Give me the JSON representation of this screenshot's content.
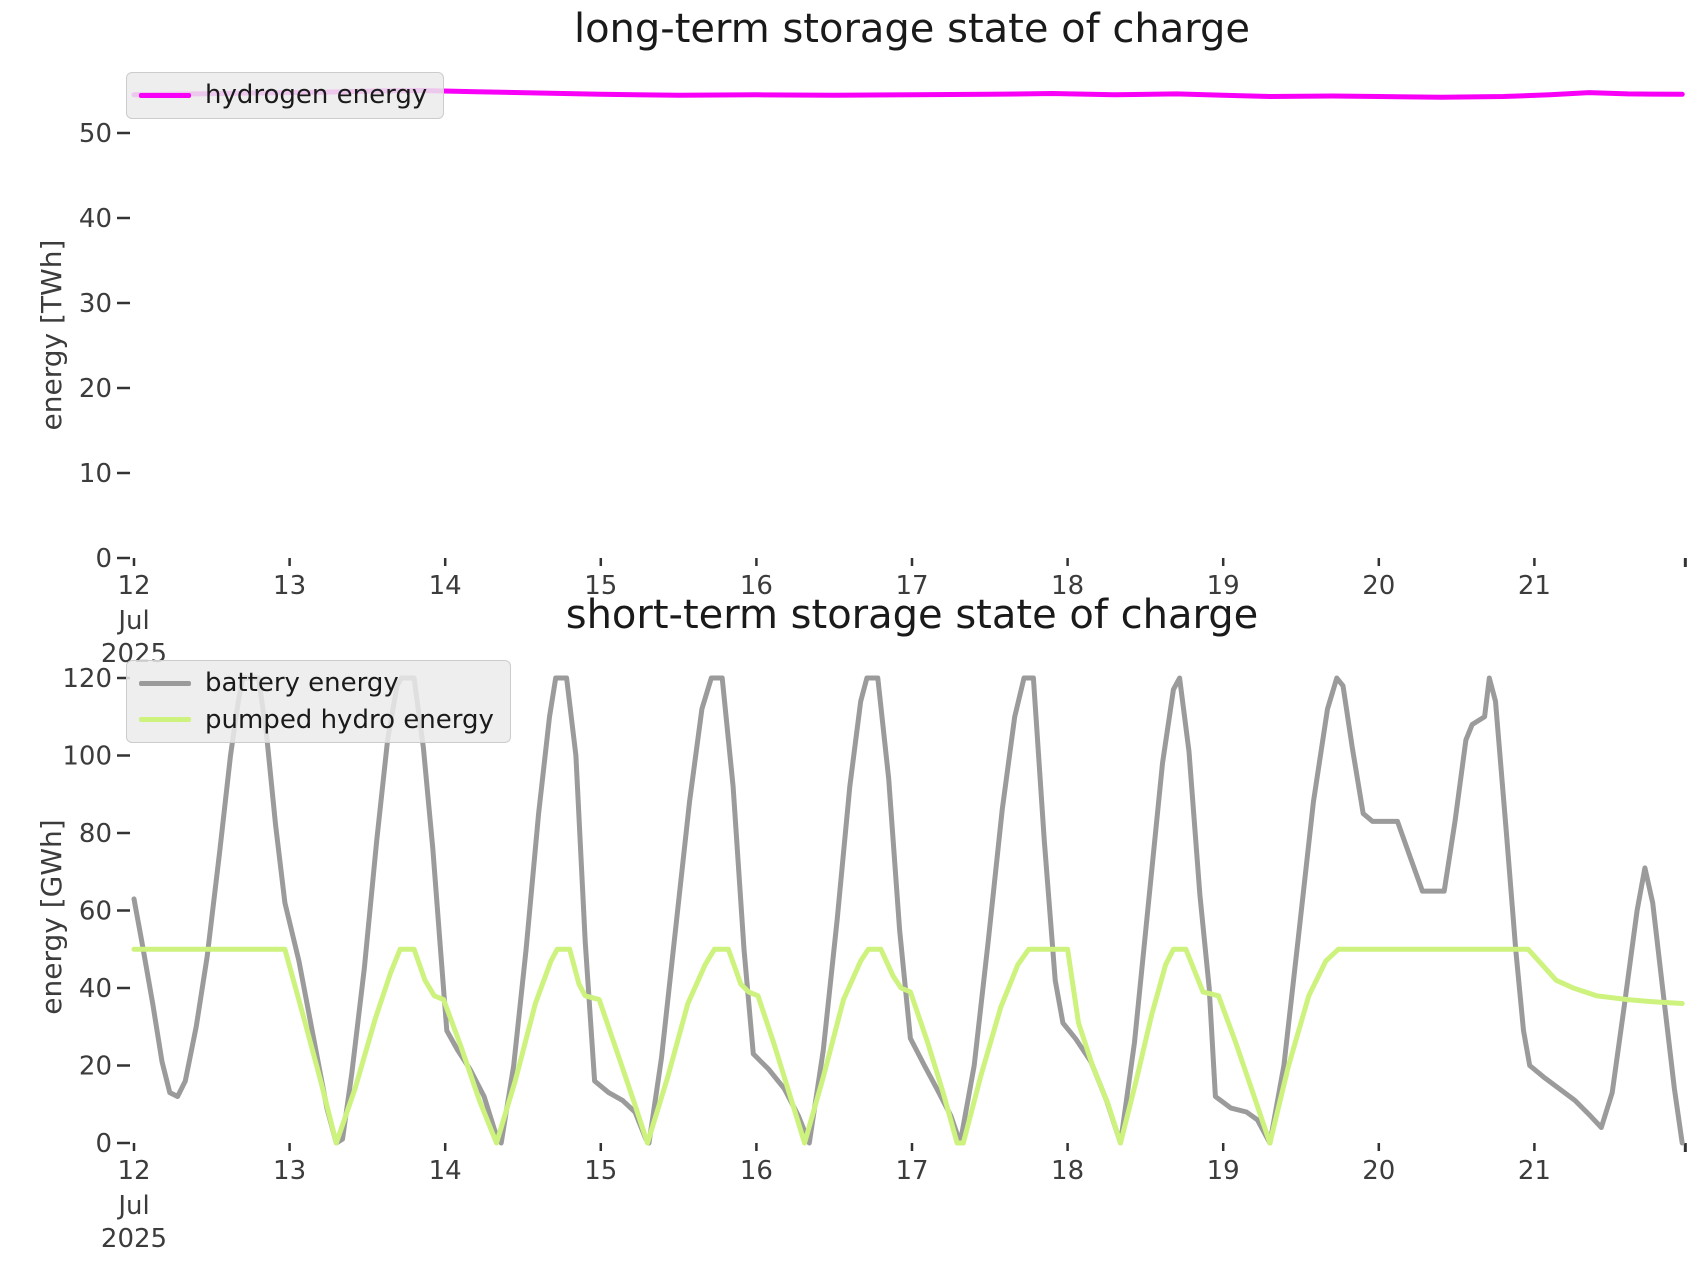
{
  "figure": {
    "background": "#ffffff",
    "text_color": "#3c3c3c",
    "tick_color": "#333333"
  },
  "chart_data": [
    {
      "type": "line",
      "title": "long-term storage state of charge",
      "ylabel": "energy [TWh]",
      "xlabel": "",
      "grid": false,
      "legend_position": "upper left",
      "xlim": [
        12,
        21.97
      ],
      "ylim": [
        0,
        56.5
      ],
      "yticks": [
        0,
        10,
        20,
        30,
        40,
        50
      ],
      "xticks": {
        "values": [
          12,
          13,
          14,
          15,
          16,
          17,
          18,
          19,
          20,
          21
        ],
        "labels": [
          "12",
          "13",
          "14",
          "15",
          "16",
          "17",
          "18",
          "19",
          "20",
          "21"
        ],
        "sublabel_lines": [
          "Jul",
          "2025"
        ],
        "unlabeled_end_tick": 21.97
      },
      "series": [
        {
          "name": "hydrogen energy",
          "color": "#f800f8",
          "points": [
            [
              12.0,
              54.5
            ],
            [
              12.4,
              54.6
            ],
            [
              12.8,
              54.7
            ],
            [
              13.2,
              54.8
            ],
            [
              13.6,
              54.95
            ],
            [
              13.85,
              55.0
            ],
            [
              14.2,
              54.85
            ],
            [
              14.6,
              54.7
            ],
            [
              15.0,
              54.55
            ],
            [
              15.5,
              54.45
            ],
            [
              16.0,
              54.5
            ],
            [
              16.5,
              54.45
            ],
            [
              17.0,
              54.5
            ],
            [
              17.5,
              54.55
            ],
            [
              17.9,
              54.65
            ],
            [
              18.3,
              54.5
            ],
            [
              18.7,
              54.6
            ],
            [
              19.0,
              54.45
            ],
            [
              19.3,
              54.3
            ],
            [
              19.7,
              54.35
            ],
            [
              20.0,
              54.3
            ],
            [
              20.4,
              54.2
            ],
            [
              20.8,
              54.3
            ],
            [
              21.1,
              54.5
            ],
            [
              21.35,
              54.75
            ],
            [
              21.6,
              54.6
            ],
            [
              21.95,
              54.55
            ]
          ]
        }
      ]
    },
    {
      "type": "line",
      "title": "short-term storage state of charge",
      "ylabel": "energy [GWh]",
      "xlabel": "",
      "grid": false,
      "legend_position": "upper left",
      "xlim": [
        12,
        21.97
      ],
      "ylim": [
        0,
        126
      ],
      "yticks": [
        0,
        20,
        40,
        60,
        80,
        100,
        120
      ],
      "xticks": {
        "values": [
          12,
          13,
          14,
          15,
          16,
          17,
          18,
          19,
          20,
          21
        ],
        "labels": [
          "12",
          "13",
          "14",
          "15",
          "16",
          "17",
          "18",
          "19",
          "20",
          "21"
        ],
        "sublabel_lines": [
          "Jul",
          "2025"
        ],
        "unlabeled_end_tick": 21.97
      },
      "series": [
        {
          "name": "battery energy",
          "color": "#9b9b9b",
          "points": [
            [
              12.0,
              63
            ],
            [
              12.05,
              52
            ],
            [
              12.12,
              36
            ],
            [
              12.18,
              21
            ],
            [
              12.23,
              13
            ],
            [
              12.28,
              12
            ],
            [
              12.33,
              16
            ],
            [
              12.4,
              30
            ],
            [
              12.47,
              48
            ],
            [
              12.55,
              75
            ],
            [
              12.62,
              100
            ],
            [
              12.67,
              114
            ],
            [
              12.7,
              120
            ],
            [
              12.8,
              120
            ],
            [
              12.85,
              106
            ],
            [
              12.91,
              82
            ],
            [
              12.97,
              62
            ],
            [
              13.06,
              47
            ],
            [
              13.15,
              28
            ],
            [
              13.24,
              9
            ],
            [
              13.3,
              0
            ],
            [
              13.34,
              1
            ],
            [
              13.4,
              18
            ],
            [
              13.48,
              45
            ],
            [
              13.56,
              78
            ],
            [
              13.63,
              104
            ],
            [
              13.69,
              118
            ],
            [
              13.72,
              120
            ],
            [
              13.8,
              120
            ],
            [
              13.86,
              102
            ],
            [
              13.92,
              76
            ],
            [
              13.97,
              50
            ],
            [
              14.01,
              29
            ],
            [
              14.08,
              24
            ],
            [
              14.16,
              19
            ],
            [
              14.25,
              12
            ],
            [
              14.32,
              3
            ],
            [
              14.36,
              0
            ],
            [
              14.44,
              20
            ],
            [
              14.52,
              50
            ],
            [
              14.6,
              85
            ],
            [
              14.67,
              110
            ],
            [
              14.71,
              120
            ],
            [
              14.78,
              120
            ],
            [
              14.84,
              100
            ],
            [
              14.9,
              52
            ],
            [
              14.96,
              16
            ],
            [
              15.05,
              13
            ],
            [
              15.14,
              11
            ],
            [
              15.22,
              8
            ],
            [
              15.29,
              1
            ],
            [
              15.31,
              0
            ],
            [
              15.39,
              22
            ],
            [
              15.48,
              55
            ],
            [
              15.57,
              88
            ],
            [
              15.65,
              112
            ],
            [
              15.71,
              120
            ],
            [
              15.78,
              120
            ],
            [
              15.85,
              92
            ],
            [
              15.92,
              50
            ],
            [
              15.98,
              23
            ],
            [
              16.08,
              19
            ],
            [
              16.18,
              14
            ],
            [
              16.27,
              7
            ],
            [
              16.34,
              0
            ],
            [
              16.43,
              24
            ],
            [
              16.52,
              58
            ],
            [
              16.6,
              92
            ],
            [
              16.67,
              114
            ],
            [
              16.71,
              120
            ],
            [
              16.78,
              120
            ],
            [
              16.85,
              94
            ],
            [
              16.92,
              55
            ],
            [
              16.99,
              27
            ],
            [
              17.08,
              20
            ],
            [
              17.16,
              14
            ],
            [
              17.25,
              7
            ],
            [
              17.31,
              0
            ],
            [
              17.4,
              20
            ],
            [
              17.49,
              52
            ],
            [
              17.58,
              86
            ],
            [
              17.66,
              110
            ],
            [
              17.72,
              120
            ],
            [
              17.78,
              120
            ],
            [
              17.85,
              78
            ],
            [
              17.92,
              42
            ],
            [
              17.97,
              31
            ],
            [
              18.05,
              27
            ],
            [
              18.15,
              21
            ],
            [
              18.25,
              11
            ],
            [
              18.34,
              0
            ],
            [
              18.43,
              26
            ],
            [
              18.52,
              62
            ],
            [
              18.61,
              98
            ],
            [
              18.68,
              117
            ],
            [
              18.72,
              120
            ],
            [
              18.78,
              101
            ],
            [
              18.85,
              64
            ],
            [
              18.91,
              40
            ],
            [
              18.95,
              12
            ],
            [
              19.05,
              9
            ],
            [
              19.15,
              8
            ],
            [
              19.22,
              6
            ],
            [
              19.3,
              0
            ],
            [
              19.39,
              20
            ],
            [
              19.48,
              52
            ],
            [
              19.58,
              88
            ],
            [
              19.67,
              112
            ],
            [
              19.73,
              120
            ],
            [
              19.77,
              118
            ],
            [
              19.83,
              102
            ],
            [
              19.9,
              85
            ],
            [
              19.96,
              83
            ],
            [
              20.12,
              83
            ],
            [
              20.2,
              74
            ],
            [
              20.28,
              65
            ],
            [
              20.42,
              65
            ],
            [
              20.49,
              83
            ],
            [
              20.56,
              104
            ],
            [
              20.6,
              108
            ],
            [
              20.68,
              110
            ],
            [
              20.71,
              120
            ],
            [
              20.75,
              114
            ],
            [
              20.82,
              80
            ],
            [
              20.88,
              50
            ],
            [
              20.93,
              29
            ],
            [
              20.97,
              20
            ],
            [
              21.06,
              17
            ],
            [
              21.16,
              14
            ],
            [
              21.26,
              11
            ],
            [
              21.36,
              7
            ],
            [
              21.43,
              4
            ],
            [
              21.5,
              13
            ],
            [
              21.58,
              36
            ],
            [
              21.66,
              60
            ],
            [
              21.71,
              71
            ],
            [
              21.76,
              62
            ],
            [
              21.83,
              38
            ],
            [
              21.9,
              14
            ],
            [
              21.95,
              0
            ]
          ]
        },
        {
          "name": "pumped hydro energy",
          "color": "#cdf27d",
          "points": [
            [
              12.0,
              50
            ],
            [
              12.97,
              50
            ],
            [
              13.1,
              31
            ],
            [
              13.2,
              16
            ],
            [
              13.3,
              0
            ],
            [
              13.42,
              14
            ],
            [
              13.55,
              32
            ],
            [
              13.65,
              44
            ],
            [
              13.71,
              50
            ],
            [
              13.8,
              50
            ],
            [
              13.87,
              42
            ],
            [
              13.93,
              38
            ],
            [
              13.99,
              37
            ],
            [
              14.1,
              25
            ],
            [
              14.22,
              11
            ],
            [
              14.33,
              0
            ],
            [
              14.45,
              16
            ],
            [
              14.58,
              36
            ],
            [
              14.68,
              47
            ],
            [
              14.72,
              50
            ],
            [
              14.8,
              50
            ],
            [
              14.86,
              41
            ],
            [
              14.9,
              38
            ],
            [
              14.99,
              37
            ],
            [
              15.1,
              24
            ],
            [
              15.21,
              11
            ],
            [
              15.3,
              0
            ],
            [
              15.43,
              17
            ],
            [
              15.56,
              36
            ],
            [
              15.67,
              46
            ],
            [
              15.73,
              50
            ],
            [
              15.82,
              50
            ],
            [
              15.9,
              41
            ],
            [
              15.95,
              39
            ],
            [
              16.01,
              38
            ],
            [
              16.11,
              26
            ],
            [
              16.21,
              13
            ],
            [
              16.31,
              0
            ],
            [
              16.43,
              17
            ],
            [
              16.56,
              37
            ],
            [
              16.67,
              47
            ],
            [
              16.72,
              50
            ],
            [
              16.8,
              50
            ],
            [
              16.88,
              43
            ],
            [
              16.93,
              40
            ],
            [
              16.99,
              39
            ],
            [
              17.1,
              26
            ],
            [
              17.2,
              13
            ],
            [
              17.29,
              0
            ],
            [
              17.33,
              0
            ],
            [
              17.44,
              17
            ],
            [
              17.57,
              35
            ],
            [
              17.68,
              46
            ],
            [
              17.75,
              50
            ],
            [
              18.0,
              50
            ],
            [
              18.07,
              31
            ],
            [
              18.16,
              20
            ],
            [
              18.26,
              10
            ],
            [
              18.34,
              0
            ],
            [
              18.44,
              16
            ],
            [
              18.54,
              33
            ],
            [
              18.63,
              46
            ],
            [
              18.68,
              50
            ],
            [
              18.76,
              50
            ],
            [
              18.82,
              44
            ],
            [
              18.87,
              39
            ],
            [
              18.97,
              38
            ],
            [
              19.08,
              26
            ],
            [
              19.19,
              13
            ],
            [
              19.3,
              0
            ],
            [
              19.42,
              20
            ],
            [
              19.55,
              38
            ],
            [
              19.66,
              47
            ],
            [
              19.74,
              50
            ],
            [
              20.96,
              50
            ],
            [
              21.05,
              46
            ],
            [
              21.14,
              42
            ],
            [
              21.25,
              40
            ],
            [
              21.4,
              38
            ],
            [
              21.6,
              37
            ],
            [
              21.75,
              36.5
            ],
            [
              21.95,
              36
            ]
          ]
        }
      ]
    }
  ]
}
